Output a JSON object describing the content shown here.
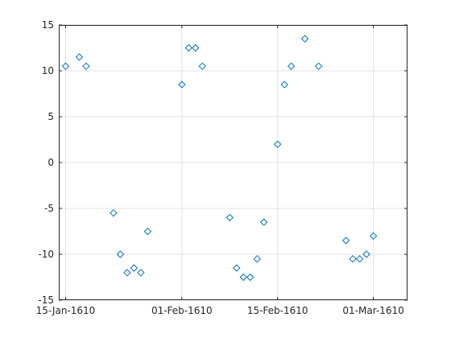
{
  "chart_data": {
    "type": "scatter",
    "title": "",
    "xlabel": "",
    "ylabel": "",
    "x_axis_type": "date",
    "xlim": [
      "1610-01-14",
      "1610-03-06"
    ],
    "ylim": [
      -15,
      15
    ],
    "grid": true,
    "marker": "diamond",
    "marker_color": "#0072BD",
    "x_ticks": [
      {
        "date": "1610-01-15",
        "label": "15-Jan-1610"
      },
      {
        "date": "1610-02-01",
        "label": "01-Feb-1610"
      },
      {
        "date": "1610-02-15",
        "label": "15-Feb-1610"
      },
      {
        "date": "1610-03-01",
        "label": "01-Mar-1610"
      }
    ],
    "y_ticks": [
      {
        "value": -15,
        "label": "-15"
      },
      {
        "value": -10,
        "label": "-10"
      },
      {
        "value": -5,
        "label": "-5"
      },
      {
        "value": 0,
        "label": "0"
      },
      {
        "value": 5,
        "label": "5"
      },
      {
        "value": 10,
        "label": "10"
      },
      {
        "value": 15,
        "label": "15"
      }
    ],
    "series": [
      {
        "points": [
          {
            "x": "1610-01-15",
            "y": 10.5
          },
          {
            "x": "1610-01-17",
            "y": 11.5
          },
          {
            "x": "1610-01-18",
            "y": 10.5
          },
          {
            "x": "1610-01-22",
            "y": -5.5
          },
          {
            "x": "1610-01-23",
            "y": -10
          },
          {
            "x": "1610-01-24",
            "y": -12
          },
          {
            "x": "1610-01-25",
            "y": -11.5
          },
          {
            "x": "1610-01-26",
            "y": -12
          },
          {
            "x": "1610-01-27",
            "y": -7.5
          },
          {
            "x": "1610-02-01",
            "y": 8.5
          },
          {
            "x": "1610-02-02",
            "y": 12.5
          },
          {
            "x": "1610-02-03",
            "y": 12.5
          },
          {
            "x": "1610-02-04",
            "y": 10.5
          },
          {
            "x": "1610-02-08",
            "y": -6
          },
          {
            "x": "1610-02-09",
            "y": -11.5
          },
          {
            "x": "1610-02-10",
            "y": -12.5
          },
          {
            "x": "1610-02-11",
            "y": -12.5
          },
          {
            "x": "1610-02-12",
            "y": -10.5
          },
          {
            "x": "1610-02-13",
            "y": -6.5
          },
          {
            "x": "1610-02-15",
            "y": 2
          },
          {
            "x": "1610-02-16",
            "y": 8.5
          },
          {
            "x": "1610-02-17",
            "y": 10.5
          },
          {
            "x": "1610-02-19",
            "y": 13.5
          },
          {
            "x": "1610-02-21",
            "y": 10.5
          },
          {
            "x": "1610-02-25",
            "y": -8.5
          },
          {
            "x": "1610-02-26",
            "y": -10.5
          },
          {
            "x": "1610-02-27",
            "y": -10.5
          },
          {
            "x": "1610-02-28",
            "y": -10
          },
          {
            "x": "1610-03-01",
            "y": -8
          }
        ]
      }
    ]
  }
}
